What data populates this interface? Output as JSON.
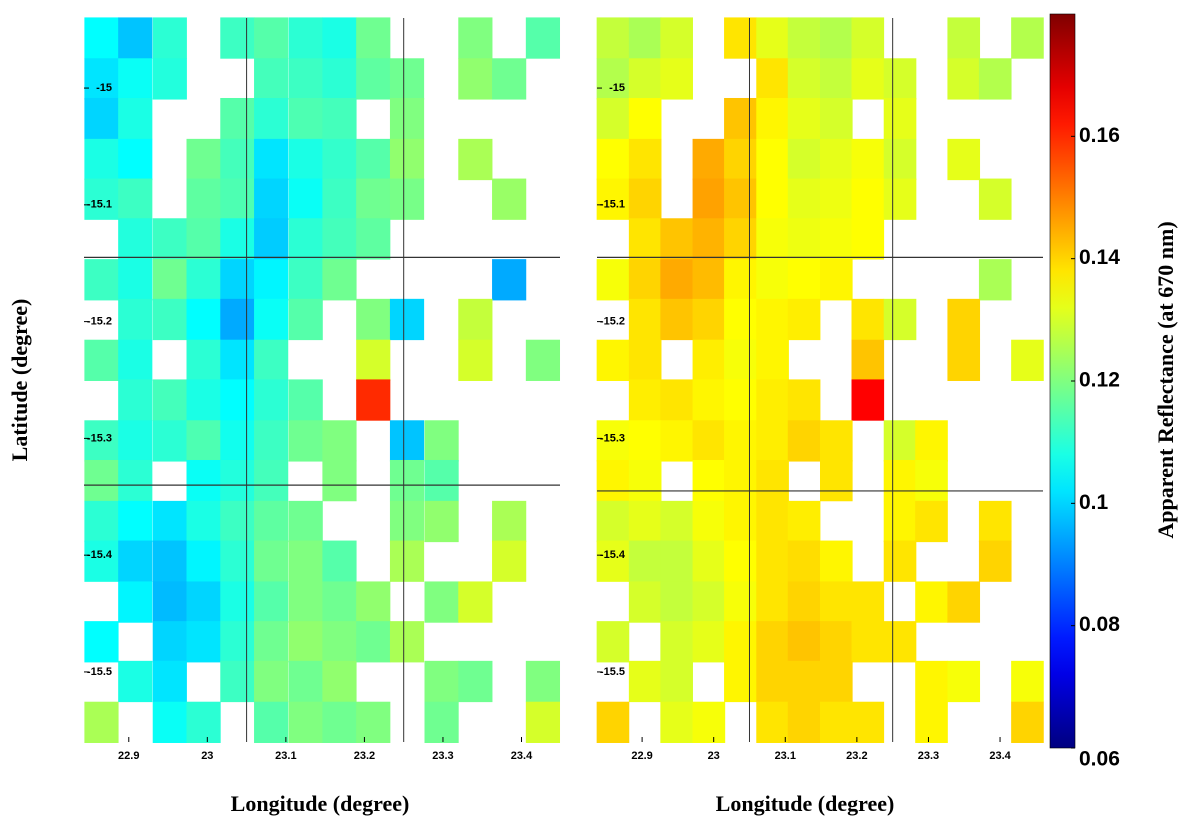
{
  "chart_data": {
    "type": "heatmap",
    "colorbar_label": "Apparent Reflectance (at 670 nm)",
    "clim": [
      0.06,
      0.18
    ],
    "cticks": [
      0.06,
      0.08,
      0.1,
      0.12,
      0.14,
      0.16
    ],
    "colormap": "jet",
    "panels": [
      {
        "xlabel": "Longitude (degree)",
        "ylabel": "Latitude (degree)",
        "xlim": [
          22.843,
          23.449
        ],
        "ylim": [
          -15.56,
          -14.94
        ],
        "xticks": [
          22.9,
          23,
          23.1,
          23.2,
          23.3,
          23.4
        ],
        "yticks": [
          -15,
          -15.1,
          -15.2,
          -15.3,
          -15.4,
          -15.5
        ],
        "lines": {
          "x": [
            23.05,
            23.25
          ],
          "y": [
            -15.145,
            -15.34
          ]
        },
        "x": [
          22.865,
          22.908,
          22.952,
          22.995,
          23.038,
          23.081,
          23.125,
          23.168,
          23.211,
          23.254,
          23.298,
          23.341,
          23.384,
          23.427
        ],
        "y": [
          -14.957,
          -14.992,
          -15.026,
          -15.061,
          -15.095,
          -15.129,
          -15.164,
          -15.198,
          -15.233,
          -15.267,
          -15.302,
          -15.336,
          -15.371,
          -15.405,
          -15.44,
          -15.474,
          -15.508,
          -15.543
        ],
        "values": [
          [
            0.105,
            0.098,
            0.11,
            null,
            0.112,
            0.115,
            0.11,
            0.108,
            0.118,
            null,
            null,
            0.12,
            null,
            0.115
          ],
          [
            0.102,
            0.106,
            0.109,
            null,
            null,
            0.113,
            0.112,
            0.11,
            0.116,
            0.118,
            null,
            0.122,
            0.118,
            null
          ],
          [
            0.1,
            0.108,
            null,
            null,
            0.115,
            0.11,
            0.114,
            0.113,
            null,
            0.12,
            null,
            null,
            null,
            null
          ],
          [
            0.108,
            0.105,
            null,
            0.118,
            0.113,
            0.102,
            0.108,
            0.111,
            0.115,
            0.122,
            null,
            0.125,
            null,
            null
          ],
          [
            0.11,
            0.112,
            null,
            0.116,
            0.114,
            0.1,
            0.106,
            0.112,
            0.118,
            0.119,
            null,
            null,
            0.123,
            null
          ],
          [
            null,
            0.109,
            0.112,
            0.115,
            0.108,
            0.099,
            0.11,
            0.113,
            0.116,
            null,
            null,
            null,
            null,
            null
          ],
          [
            0.112,
            0.108,
            0.118,
            0.11,
            0.1,
            0.104,
            0.112,
            0.118,
            null,
            null,
            null,
            null,
            0.095,
            null
          ],
          [
            null,
            0.11,
            0.112,
            0.105,
            0.095,
            0.106,
            0.115,
            null,
            0.12,
            0.1,
            null,
            0.128,
            null,
            null
          ],
          [
            0.115,
            0.108,
            null,
            0.11,
            0.102,
            0.112,
            null,
            null,
            0.13,
            null,
            null,
            0.13,
            null,
            0.12
          ],
          [
            null,
            0.11,
            0.113,
            0.108,
            0.105,
            0.11,
            0.115,
            null,
            0.16,
            null,
            null,
            null,
            null,
            null
          ],
          [
            0.112,
            0.108,
            0.11,
            0.114,
            0.107,
            0.112,
            0.118,
            0.12,
            null,
            0.098,
            0.12,
            null,
            null,
            null
          ],
          [
            0.118,
            0.11,
            null,
            0.106,
            0.109,
            0.113,
            null,
            0.12,
            null,
            0.118,
            0.115,
            null,
            null,
            null
          ],
          [
            0.11,
            0.105,
            0.102,
            0.108,
            0.112,
            0.116,
            0.118,
            null,
            null,
            0.12,
            0.122,
            null,
            0.125,
            null
          ],
          [
            0.108,
            0.1,
            0.098,
            0.104,
            0.11,
            0.118,
            0.12,
            0.115,
            null,
            0.125,
            null,
            null,
            0.13,
            null
          ],
          [
            null,
            0.104,
            0.097,
            0.1,
            0.108,
            0.115,
            0.12,
            0.118,
            0.122,
            null,
            0.12,
            0.13,
            null,
            null
          ],
          [
            0.105,
            null,
            0.1,
            0.102,
            0.11,
            0.118,
            0.122,
            0.12,
            0.118,
            0.125,
            null,
            null,
            null,
            null
          ],
          [
            null,
            0.108,
            0.102,
            null,
            0.112,
            0.12,
            0.118,
            0.122,
            null,
            null,
            0.12,
            0.118,
            null,
            0.12
          ],
          [
            0.125,
            null,
            0.106,
            0.11,
            null,
            0.115,
            0.12,
            0.118,
            0.12,
            null,
            0.118,
            null,
            null,
            0.13
          ]
        ]
      },
      {
        "xlabel": "Longitude (degree)",
        "xlim": [
          22.837,
          23.46
        ],
        "ylim": [
          -15.56,
          -14.94
        ],
        "xticks": [
          22.9,
          23,
          23.1,
          23.2,
          23.3,
          23.4
        ],
        "yticks": [
          -15,
          -15.1,
          -15.2,
          -15.3,
          -15.4,
          -15.5
        ],
        "lines": {
          "x": [
            23.05,
            23.25
          ],
          "y": [
            -15.145,
            -15.345
          ]
        },
        "x": [
          22.859,
          22.904,
          22.948,
          22.993,
          23.037,
          23.082,
          23.126,
          23.171,
          23.215,
          23.26,
          23.304,
          23.349,
          23.393,
          23.438
        ],
        "y": [
          -14.957,
          -14.992,
          -15.026,
          -15.061,
          -15.095,
          -15.129,
          -15.164,
          -15.198,
          -15.233,
          -15.267,
          -15.302,
          -15.336,
          -15.371,
          -15.405,
          -15.44,
          -15.474,
          -15.508,
          -15.543
        ],
        "values": [
          [
            0.128,
            0.125,
            0.13,
            null,
            0.138,
            0.132,
            0.128,
            0.126,
            0.13,
            null,
            null,
            0.128,
            null,
            0.126
          ],
          [
            0.126,
            0.13,
            0.132,
            null,
            null,
            0.138,
            0.13,
            0.128,
            0.132,
            0.13,
            null,
            0.13,
            0.126,
            null
          ],
          [
            0.13,
            0.135,
            null,
            null,
            0.142,
            0.136,
            0.132,
            0.13,
            null,
            0.132,
            null,
            null,
            null,
            null
          ],
          [
            0.135,
            0.138,
            null,
            0.145,
            0.14,
            0.135,
            0.13,
            0.132,
            0.134,
            0.13,
            null,
            0.132,
            null,
            null
          ],
          [
            0.136,
            0.14,
            null,
            0.146,
            0.142,
            0.135,
            0.132,
            0.133,
            0.135,
            0.132,
            null,
            null,
            0.13,
            null
          ],
          [
            null,
            0.138,
            0.142,
            0.144,
            0.14,
            0.134,
            0.133,
            0.134,
            0.135,
            null,
            null,
            null,
            null,
            null
          ],
          [
            0.134,
            0.14,
            0.145,
            0.143,
            0.136,
            0.134,
            0.135,
            0.136,
            null,
            null,
            null,
            null,
            0.125,
            null
          ],
          [
            null,
            0.138,
            0.142,
            0.14,
            0.135,
            0.136,
            0.137,
            null,
            0.138,
            0.13,
            null,
            0.14,
            null,
            null
          ],
          [
            0.136,
            0.138,
            null,
            0.137,
            0.134,
            0.136,
            null,
            null,
            0.142,
            null,
            null,
            0.14,
            null,
            0.132
          ],
          [
            null,
            0.137,
            0.138,
            0.136,
            0.135,
            0.137,
            0.138,
            null,
            0.165,
            null,
            null,
            null,
            null,
            null
          ],
          [
            0.134,
            0.135,
            0.136,
            0.138,
            0.136,
            0.137,
            0.14,
            0.138,
            null,
            0.13,
            0.136,
            null,
            null,
            null
          ],
          [
            0.136,
            0.134,
            null,
            0.135,
            0.136,
            0.138,
            null,
            0.138,
            null,
            0.136,
            0.134,
            null,
            null,
            null
          ],
          [
            0.13,
            0.132,
            0.13,
            0.134,
            0.136,
            0.138,
            0.137,
            null,
            null,
            0.136,
            0.138,
            null,
            0.138,
            null
          ],
          [
            0.132,
            0.128,
            0.128,
            0.132,
            0.135,
            0.138,
            0.139,
            0.136,
            null,
            0.138,
            null,
            null,
            0.14,
            null
          ],
          [
            null,
            0.13,
            0.128,
            0.13,
            0.134,
            0.138,
            0.14,
            0.138,
            0.138,
            null,
            0.136,
            0.14,
            null,
            null
          ],
          [
            0.13,
            null,
            0.13,
            0.132,
            0.136,
            0.14,
            0.142,
            0.14,
            0.138,
            0.138,
            null,
            null,
            null,
            null
          ],
          [
            null,
            0.132,
            0.13,
            null,
            0.136,
            0.14,
            0.14,
            0.14,
            null,
            null,
            0.136,
            0.134,
            null,
            0.134
          ],
          [
            0.14,
            null,
            0.132,
            0.134,
            null,
            0.138,
            0.14,
            0.138,
            0.138,
            null,
            0.136,
            null,
            null,
            0.14
          ]
        ]
      }
    ]
  }
}
